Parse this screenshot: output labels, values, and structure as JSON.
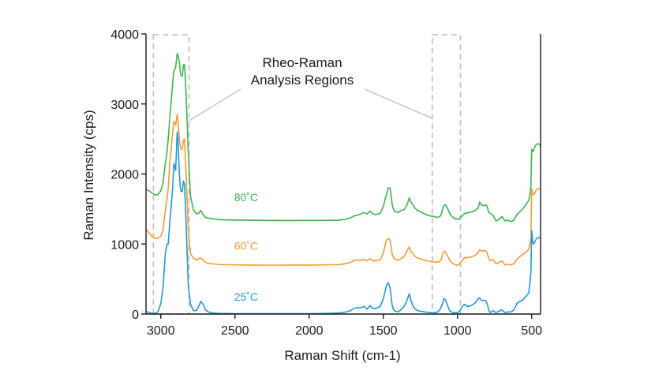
{
  "chart_data": {
    "type": "line",
    "title": "",
    "xlabel": "Raman Shift (cm-1)",
    "ylabel": "Raman Intensity (cps)",
    "xlim": [
      3100,
      440
    ],
    "ylim": [
      0,
      4000
    ],
    "x_reversed": true,
    "grid": false,
    "x_ticks": [
      3000,
      2500,
      2000,
      1500,
      1000,
      500
    ],
    "y_ticks": [
      0,
      1000,
      2000,
      3000,
      4000
    ],
    "annotation": {
      "text_lines": [
        "Rheo-Raman",
        "Analysis Regions"
      ]
    },
    "highlight_regions": [
      {
        "x_from": 3050,
        "x_to": 2810
      },
      {
        "x_from": 1170,
        "x_to": 980
      }
    ],
    "series": [
      {
        "name": "80˚C",
        "color": "#3db54a",
        "x": [
          3100,
          3080,
          3060,
          3040,
          3020,
          3000,
          2985,
          2970,
          2958,
          2950,
          2940,
          2930,
          2920,
          2912,
          2900,
          2890,
          2885,
          2875,
          2868,
          2862,
          2855,
          2848,
          2840,
          2830,
          2815,
          2800,
          2780,
          2760,
          2745,
          2730,
          2715,
          2700,
          2680,
          2650,
          2620,
          2580,
          2500,
          2400,
          2300,
          2200,
          2100,
          2000,
          1900,
          1800,
          1750,
          1720,
          1700,
          1680,
          1650,
          1630,
          1610,
          1590,
          1570,
          1550,
          1520,
          1500,
          1480,
          1468,
          1455,
          1445,
          1440,
          1430,
          1420,
          1400,
          1380,
          1360,
          1340,
          1325,
          1315,
          1300,
          1290,
          1270,
          1250,
          1220,
          1200,
          1180,
          1160,
          1140,
          1120,
          1110,
          1100,
          1090,
          1080,
          1070,
          1060,
          1050,
          1040,
          1030,
          1020,
          1010,
          1000,
          990,
          980,
          970,
          960,
          950,
          940,
          920,
          900,
          880,
          860,
          850,
          840,
          830,
          820,
          810,
          800,
          790,
          780,
          760,
          740,
          720,
          700,
          680,
          660,
          640,
          620,
          600,
          580,
          560,
          540,
          520,
          512,
          505,
          500,
          490,
          480,
          470,
          460,
          450,
          440
        ],
        "y": [
          1780,
          1760,
          1730,
          1700,
          1705,
          1760,
          1870,
          2150,
          2320,
          2500,
          2800,
          3050,
          3300,
          3470,
          3520,
          3720,
          3700,
          3600,
          3440,
          3400,
          3400,
          3560,
          3560,
          3150,
          2300,
          1680,
          1490,
          1430,
          1440,
          1480,
          1420,
          1380,
          1370,
          1360,
          1350,
          1345,
          1342,
          1340,
          1338,
          1336,
          1336,
          1338,
          1338,
          1340,
          1355,
          1375,
          1400,
          1410,
          1430,
          1450,
          1430,
          1470,
          1430,
          1420,
          1440,
          1540,
          1700,
          1800,
          1800,
          1650,
          1560,
          1490,
          1460,
          1450,
          1480,
          1490,
          1560,
          1660,
          1600,
          1560,
          1520,
          1480,
          1460,
          1430,
          1410,
          1400,
          1395,
          1380,
          1390,
          1420,
          1500,
          1550,
          1560,
          1520,
          1470,
          1430,
          1400,
          1380,
          1360,
          1360,
          1350,
          1360,
          1380,
          1400,
          1420,
          1440,
          1440,
          1450,
          1460,
          1480,
          1520,
          1600,
          1560,
          1550,
          1550,
          1560,
          1540,
          1450,
          1440,
          1410,
          1330,
          1350,
          1390,
          1330,
          1340,
          1320,
          1340,
          1420,
          1460,
          1500,
          1560,
          1620,
          1700,
          1850,
          2350,
          2320,
          2380,
          2420,
          2430,
          2430,
          2400
        ],
        "label_at": {
          "x": 2425,
          "y": 1610
        }
      },
      {
        "name": "60˚C",
        "color": "#f39a35",
        "x": [
          3100,
          3080,
          3060,
          3040,
          3020,
          3000,
          2985,
          2970,
          2958,
          2950,
          2940,
          2930,
          2920,
          2912,
          2900,
          2890,
          2885,
          2875,
          2868,
          2862,
          2855,
          2848,
          2840,
          2830,
          2815,
          2800,
          2780,
          2760,
          2745,
          2730,
          2715,
          2700,
          2680,
          2650,
          2620,
          2580,
          2500,
          2400,
          2300,
          2200,
          2100,
          2000,
          1900,
          1800,
          1750,
          1720,
          1700,
          1680,
          1650,
          1630,
          1610,
          1590,
          1570,
          1550,
          1520,
          1500,
          1480,
          1468,
          1455,
          1445,
          1440,
          1430,
          1420,
          1400,
          1380,
          1360,
          1340,
          1325,
          1315,
          1300,
          1290,
          1270,
          1250,
          1220,
          1200,
          1180,
          1160,
          1140,
          1120,
          1110,
          1100,
          1090,
          1080,
          1070,
          1060,
          1050,
          1040,
          1030,
          1020,
          1010,
          1000,
          990,
          980,
          970,
          960,
          950,
          940,
          920,
          900,
          880,
          860,
          850,
          840,
          830,
          820,
          810,
          800,
          790,
          780,
          760,
          740,
          720,
          700,
          680,
          660,
          640,
          620,
          600,
          580,
          560,
          540,
          520,
          512,
          505,
          500,
          490,
          480,
          470,
          460,
          450,
          440
        ],
        "y": [
          1210,
          1160,
          1110,
          1080,
          1080,
          1110,
          1200,
          1480,
          1650,
          1800,
          2150,
          2380,
          2600,
          2750,
          2700,
          2850,
          2760,
          2500,
          2380,
          2350,
          2360,
          2480,
          2500,
          2000,
          1200,
          860,
          800,
          770,
          790,
          800,
          770,
          740,
          725,
          715,
          710,
          705,
          702,
          700,
          699,
          699,
          700,
          700,
          702,
          705,
          720,
          740,
          760,
          770,
          770,
          780,
          760,
          790,
          760,
          760,
          780,
          870,
          1050,
          1080,
          1060,
          920,
          850,
          800,
          780,
          770,
          790,
          820,
          900,
          960,
          900,
          860,
          830,
          800,
          790,
          770,
          760,
          750,
          745,
          740,
          750,
          780,
          860,
          900,
          880,
          840,
          800,
          760,
          740,
          720,
          710,
          700,
          700,
          710,
          730,
          760,
          790,
          810,
          800,
          810,
          820,
          840,
          880,
          920,
          900,
          900,
          910,
          900,
          870,
          800,
          760,
          780,
          720,
          740,
          760,
          700,
          710,
          700,
          720,
          780,
          820,
          850,
          880,
          920,
          1000,
          1100,
          1790,
          1700,
          1720,
          1770,
          1790,
          1790,
          1780
        ],
        "label_at": {
          "x": 2425,
          "y": 920
        }
      },
      {
        "name": "25˚C",
        "color": "#1f9ad6",
        "x": [
          3100,
          3080,
          3060,
          3040,
          3020,
          3000,
          2985,
          2970,
          2958,
          2950,
          2940,
          2930,
          2920,
          2912,
          2900,
          2890,
          2885,
          2875,
          2868,
          2862,
          2855,
          2848,
          2840,
          2830,
          2815,
          2800,
          2780,
          2760,
          2745,
          2730,
          2715,
          2700,
          2680,
          2650,
          2620,
          2580,
          2500,
          2400,
          2300,
          2200,
          2100,
          2000,
          1900,
          1800,
          1750,
          1720,
          1700,
          1680,
          1650,
          1630,
          1610,
          1590,
          1570,
          1550,
          1520,
          1500,
          1480,
          1468,
          1455,
          1445,
          1440,
          1430,
          1420,
          1400,
          1380,
          1360,
          1340,
          1325,
          1315,
          1300,
          1290,
          1270,
          1250,
          1220,
          1200,
          1180,
          1160,
          1140,
          1120,
          1110,
          1100,
          1090,
          1080,
          1070,
          1060,
          1050,
          1040,
          1030,
          1020,
          1010,
          1000,
          990,
          980,
          970,
          960,
          950,
          940,
          920,
          900,
          880,
          860,
          850,
          840,
          830,
          820,
          810,
          800,
          790,
          780,
          760,
          740,
          720,
          700,
          680,
          660,
          640,
          620,
          600,
          580,
          560,
          540,
          520,
          512,
          505,
          500,
          490,
          480,
          470,
          460,
          450,
          440
        ],
        "y": [
          40,
          20,
          10,
          10,
          30,
          150,
          380,
          850,
          1000,
          1000,
          1300,
          1550,
          1800,
          2150,
          2050,
          2600,
          2500,
          2000,
          1800,
          1750,
          1750,
          1900,
          1850,
          1300,
          400,
          140,
          50,
          50,
          110,
          180,
          140,
          60,
          30,
          15,
          10,
          8,
          6,
          5,
          5,
          5,
          5,
          6,
          8,
          15,
          30,
          50,
          80,
          90,
          90,
          110,
          70,
          120,
          80,
          80,
          110,
          220,
          400,
          450,
          380,
          200,
          120,
          60,
          40,
          30,
          60,
          110,
          200,
          290,
          200,
          120,
          80,
          50,
          40,
          30,
          25,
          20,
          20,
          20,
          60,
          100,
          150,
          220,
          200,
          140,
          80,
          40,
          30,
          20,
          20,
          20,
          20,
          30,
          60,
          100,
          130,
          140,
          110,
          110,
          130,
          160,
          220,
          230,
          200,
          190,
          200,
          190,
          150,
          60,
          20,
          50,
          20,
          40,
          60,
          20,
          30,
          30,
          60,
          150,
          180,
          200,
          250,
          300,
          450,
          600,
          1190,
          1000,
          1020,
          1070,
          1090,
          1090,
          1080
        ],
        "label_at": {
          "x": 2425,
          "y": 190
        }
      }
    ]
  }
}
